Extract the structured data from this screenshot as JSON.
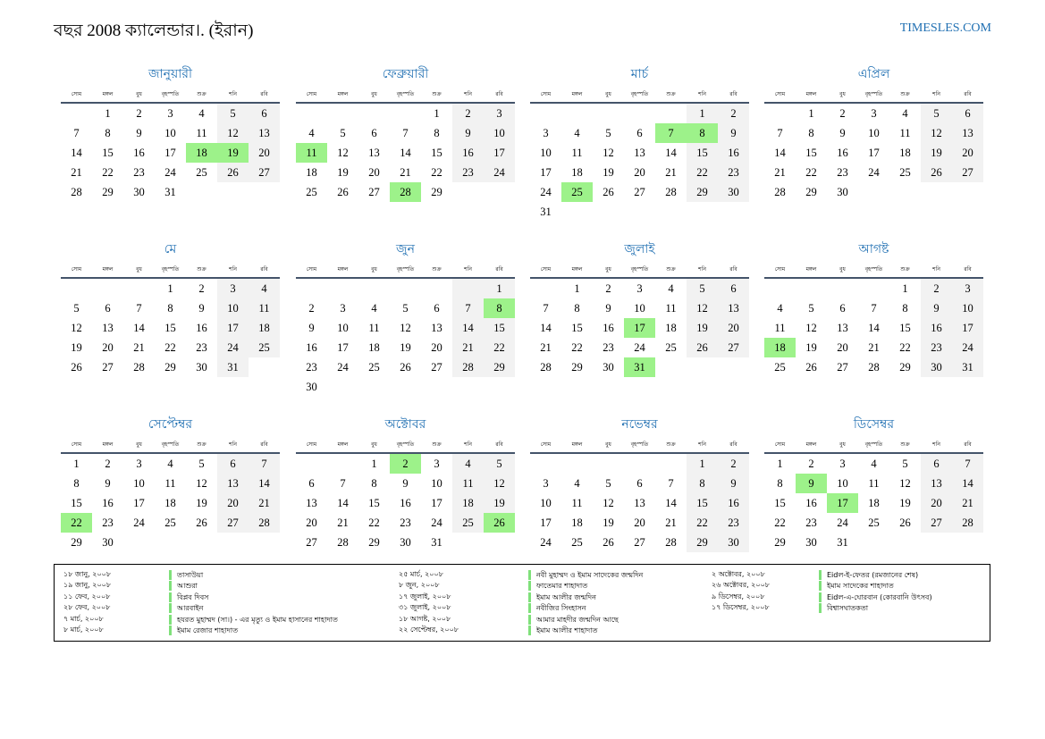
{
  "header": {
    "title": "বছর 2008 ক্যালেন্ডার।. (ইরান)",
    "site": "TIMESLES.COM"
  },
  "weekdays": [
    "সোম",
    "মঙ্গল",
    "বুধ",
    "বৃহস্পতি",
    "শুক্র",
    "শনি",
    "রবি"
  ],
  "colors": {
    "accent": "#1f6fb2",
    "holiday": "#9df28a",
    "weekend": "#f2f2f2",
    "rule": "#44546a"
  },
  "months": [
    {
      "name": "জানুয়ারী",
      "offset": 1,
      "days": 31,
      "holidays": [
        18,
        19
      ]
    },
    {
      "name": "ফেব্রুয়ারী",
      "offset": 4,
      "days": 29,
      "holidays": [
        11,
        28
      ]
    },
    {
      "name": "মার্চ",
      "offset": 5,
      "days": 31,
      "holidays": [
        7,
        8,
        25
      ]
    },
    {
      "name": "এপ্রিল",
      "offset": 1,
      "days": 30,
      "holidays": []
    },
    {
      "name": "মে",
      "offset": 3,
      "days": 31,
      "holidays": []
    },
    {
      "name": "জুন",
      "offset": 6,
      "days": 30,
      "holidays": [
        8
      ]
    },
    {
      "name": "জুলাই",
      "offset": 1,
      "days": 31,
      "holidays": [
        17,
        31
      ]
    },
    {
      "name": "আগষ্ট",
      "offset": 4,
      "days": 31,
      "holidays": [
        18
      ]
    },
    {
      "name": "সেপ্টেম্বর",
      "offset": 0,
      "days": 30,
      "holidays": [
        22
      ]
    },
    {
      "name": "অক্টোবর",
      "offset": 2,
      "days": 31,
      "holidays": [
        2,
        26
      ]
    },
    {
      "name": "নভেম্বর",
      "offset": 5,
      "days": 30,
      "holidays": []
    },
    {
      "name": "ডিসেম্বর",
      "offset": 0,
      "days": 31,
      "holidays": [
        9,
        17
      ]
    }
  ],
  "holiday_list": [
    [
      {
        "date": "১৮ জানু, ২০০৮",
        "name": "তাসাউয়া"
      },
      {
        "date": "১৯ জানু, ২০০৮",
        "name": "আশুরা"
      },
      {
        "date": "১১ ফেব, ২০০৮",
        "name": "বিপ্লব দিবস"
      },
      {
        "date": "২৮ ফেব, ২০০৮",
        "name": "আরবাইন"
      },
      {
        "date": "৭ মার্চ, ২০০৮",
        "name": "হযরত মুহাম্মদ (সা।) - এর মৃত্যু ও ইমাম হাসানের শাহাদাত"
      },
      {
        "date": "৮ মার্চ, ২০০৮",
        "name": "ইমাম রেজার শাহাদাত"
      }
    ],
    [
      {
        "date": "২৫ মার্চ, ২০০৮",
        "name": "নবী মুহাম্মদ ও ইমাম সাদেকের জন্মদিন"
      },
      {
        "date": "৮ জুন, ২০০৮",
        "name": "ফাতেমার শাহাদাত"
      },
      {
        "date": "১৭ জুলাই, ২০০৮",
        "name": "ইমাম আলীর জন্মদিন"
      },
      {
        "date": "৩১ জুলাই, ২০০৮",
        "name": "নবীজির সিংহাসন"
      },
      {
        "date": "১৮ আগষ্ট, ২০০৮",
        "name": "আমার মাহদীর জন্মদিন আছে"
      },
      {
        "date": "২২ সেপ্টেম্বর, ২০০৮",
        "name": "ইমাম আলীর শাহাদাত"
      }
    ],
    [
      {
        "date": "২ অক্টোবর, ২০০৮",
        "name": "Eidল-ই-ফেতর (রমজানের শেষ)"
      },
      {
        "date": "২৬ অক্টোবর, ২০০৮",
        "name": "ইমাম সাদেকের শাহাদাত"
      },
      {
        "date": "৯ ডিসেম্বর, ২০০৮",
        "name": "Eidল-এ-ঘোরবান (কোরবানি উৎসব)"
      },
      {
        "date": "১৭ ডিসেম্বর, ২০০৮",
        "name": "বিশ্বাসঘাতকতা"
      }
    ]
  ]
}
